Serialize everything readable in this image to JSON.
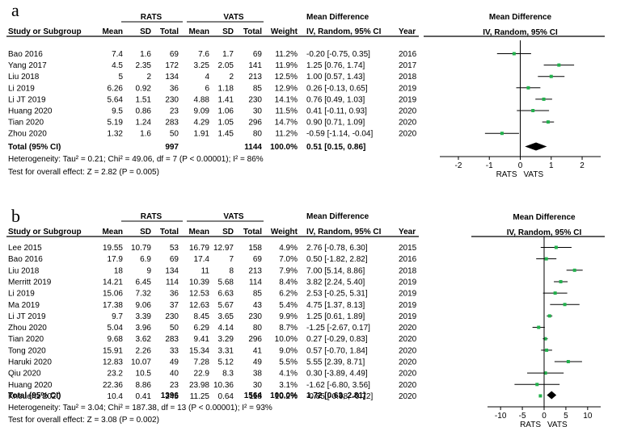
{
  "chart_data": [
    {
      "type": "forest",
      "panel_label": "a",
      "header": {
        "group1": "RATS",
        "group2": "VATS",
        "md": "Mean Difference",
        "md_sub": "IV, Random, 95% CI",
        "plot_title": "Mean Difference",
        "plot_sub": "IV, Random, 95% CI",
        "cols": {
          "study": "Study or Subgroup",
          "mean": "Mean",
          "sd": "SD",
          "total": "Total",
          "weight": "Weight",
          "year": "Year"
        }
      },
      "studies": [
        {
          "name": "Bao 2016",
          "m1": "7.4",
          "sd1": "1.6",
          "n1": "69",
          "m2": "7.6",
          "sd2": "1.7",
          "n2": "69",
          "weight": "11.2%",
          "ci": "-0.20 [-0.75, 0.35]",
          "year": "2016",
          "md": -0.2,
          "lo": -0.75,
          "hi": 0.35
        },
        {
          "name": "Yang 2017",
          "m1": "4.5",
          "sd1": "2.35",
          "n1": "172",
          "m2": "3.25",
          "sd2": "2.05",
          "n2": "141",
          "weight": "11.9%",
          "ci": "1.25 [0.76, 1.74]",
          "year": "2017",
          "md": 1.25,
          "lo": 0.76,
          "hi": 1.74
        },
        {
          "name": "Liu 2018",
          "m1": "5",
          "sd1": "2",
          "n1": "134",
          "m2": "4",
          "sd2": "2",
          "n2": "213",
          "weight": "12.5%",
          "ci": "1.00 [0.57, 1.43]",
          "year": "2018",
          "md": 1.0,
          "lo": 0.57,
          "hi": 1.43
        },
        {
          "name": "Li 2019",
          "m1": "6.26",
          "sd1": "0.92",
          "n1": "36",
          "m2": "6",
          "sd2": "1.18",
          "n2": "85",
          "weight": "12.9%",
          "ci": "0.26 [-0.13, 0.65]",
          "year": "2019",
          "md": 0.26,
          "lo": -0.13,
          "hi": 0.65
        },
        {
          "name": "Li JT 2019",
          "m1": "5.64",
          "sd1": "1.51",
          "n1": "230",
          "m2": "4.88",
          "sd2": "1.41",
          "n2": "230",
          "weight": "14.1%",
          "ci": "0.76 [0.49, 1.03]",
          "year": "2019",
          "md": 0.76,
          "lo": 0.49,
          "hi": 1.03
        },
        {
          "name": "Huang 2020",
          "m1": "9.5",
          "sd1": "0.86",
          "n1": "23",
          "m2": "9.09",
          "sd2": "1.06",
          "n2": "30",
          "weight": "11.5%",
          "ci": "0.41 [-0.11, 0.93]",
          "year": "2020",
          "md": 0.41,
          "lo": -0.11,
          "hi": 0.93
        },
        {
          "name": "Tian 2020",
          "m1": "5.19",
          "sd1": "1.24",
          "n1": "283",
          "m2": "4.29",
          "sd2": "1.05",
          "n2": "296",
          "weight": "14.7%",
          "ci": "0.90 [0.71, 1.09]",
          "year": "2020",
          "md": 0.9,
          "lo": 0.71,
          "hi": 1.09
        },
        {
          "name": "Zhou 2020",
          "m1": "1.32",
          "sd1": "1.6",
          "n1": "50",
          "m2": "1.91",
          "sd2": "1.45",
          "n2": "80",
          "weight": "11.2%",
          "ci": "-0.59 [-1.14, -0.04]",
          "year": "2020",
          "md": -0.59,
          "lo": -1.14,
          "hi": -0.04
        }
      ],
      "total": {
        "label": "Total (95% CI)",
        "n1": "997",
        "n2": "1144",
        "weight": "100.0%",
        "ci": "0.51 [0.15, 0.86]",
        "md": 0.51,
        "lo": 0.15,
        "hi": 0.86
      },
      "heterogeneity": "Heterogeneity: Tau² = 0.21; Chi² = 49.06, df = 7 (P < 0.00001); I² = 86%",
      "overall": "Test for overall effect: Z = 2.82 (P = 0.005)",
      "xlim": [
        -2.6,
        2.6
      ],
      "ticks": [
        -2,
        -1,
        0,
        1,
        2
      ],
      "xlabel_left": "RATS",
      "xlabel_right": "VATS"
    },
    {
      "type": "forest",
      "panel_label": "b",
      "header": {
        "group1": "RATS",
        "group2": "VATS",
        "md": "Mean Difference",
        "md_sub": "IV, Random, 95% CI",
        "plot_title": "Mean Difference",
        "plot_sub": "IV, Random, 95% CI",
        "cols": {
          "study": "Study or Subgroup",
          "mean": "Mean",
          "sd": "SD",
          "total": "Total",
          "weight": "Weight",
          "year": "Year"
        }
      },
      "studies": [
        {
          "name": "Lee 2015",
          "m1": "19.55",
          "sd1": "10.79",
          "n1": "53",
          "m2": "16.79",
          "sd2": "12.97",
          "n2": "158",
          "weight": "4.9%",
          "ci": "2.76 [-0.78, 6.30]",
          "year": "2015",
          "md": 2.76,
          "lo": -0.78,
          "hi": 6.3
        },
        {
          "name": "Bao 2016",
          "m1": "17.9",
          "sd1": "6.9",
          "n1": "69",
          "m2": "17.4",
          "sd2": "7",
          "n2": "69",
          "weight": "7.0%",
          "ci": "0.50 [-1.82, 2.82]",
          "year": "2016",
          "md": 0.5,
          "lo": -1.82,
          "hi": 2.82
        },
        {
          "name": "Liu 2018",
          "m1": "18",
          "sd1": "9",
          "n1": "134",
          "m2": "11",
          "sd2": "8",
          "n2": "213",
          "weight": "7.9%",
          "ci": "7.00 [5.14, 8.86]",
          "year": "2018",
          "md": 7.0,
          "lo": 5.14,
          "hi": 8.86
        },
        {
          "name": "Merritt 2019",
          "m1": "14.21",
          "sd1": "6.45",
          "n1": "114",
          "m2": "10.39",
          "sd2": "5.68",
          "n2": "114",
          "weight": "8.4%",
          "ci": "3.82 [2.24, 5.40]",
          "year": "2019",
          "md": 3.82,
          "lo": 2.24,
          "hi": 5.4
        },
        {
          "name": "Li 2019",
          "m1": "15.06",
          "sd1": "7.32",
          "n1": "36",
          "m2": "12.53",
          "sd2": "6.63",
          "n2": "85",
          "weight": "6.2%",
          "ci": "2.53 [-0.25, 5.31]",
          "year": "2019",
          "md": 2.53,
          "lo": -0.25,
          "hi": 5.31
        },
        {
          "name": "Ma 2019",
          "m1": "17.38",
          "sd1": "9.06",
          "n1": "37",
          "m2": "12.63",
          "sd2": "5.67",
          "n2": "43",
          "weight": "5.4%",
          "ci": "4.75 [1.37, 8.13]",
          "year": "2019",
          "md": 4.75,
          "lo": 1.37,
          "hi": 8.13
        },
        {
          "name": "Li JT 2019",
          "m1": "9.7",
          "sd1": "3.39",
          "n1": "230",
          "m2": "8.45",
          "sd2": "3.65",
          "n2": "230",
          "weight": "9.9%",
          "ci": "1.25 [0.61, 1.89]",
          "year": "2019",
          "md": 1.25,
          "lo": 0.61,
          "hi": 1.89
        },
        {
          "name": "Zhou 2020",
          "m1": "5.04",
          "sd1": "3.96",
          "n1": "50",
          "m2": "6.29",
          "sd2": "4.14",
          "n2": "80",
          "weight": "8.7%",
          "ci": "-1.25 [-2.67, 0.17]",
          "year": "2020",
          "md": -1.25,
          "lo": -2.67,
          "hi": 0.17
        },
        {
          "name": "Tian 2020",
          "m1": "9.68",
          "sd1": "3.62",
          "n1": "283",
          "m2": "9.41",
          "sd2": "3.29",
          "n2": "296",
          "weight": "10.0%",
          "ci": "0.27 [-0.29, 0.83]",
          "year": "2020",
          "md": 0.27,
          "lo": -0.29,
          "hi": 0.83
        },
        {
          "name": "Tong 2020",
          "m1": "15.91",
          "sd1": "2.26",
          "n1": "33",
          "m2": "15.34",
          "sd2": "3.31",
          "n2": "41",
          "weight": "9.0%",
          "ci": "0.57 [-0.70, 1.84]",
          "year": "2020",
          "md": 0.57,
          "lo": -0.7,
          "hi": 1.84
        },
        {
          "name": "Haruki 2020",
          "m1": "12.83",
          "sd1": "10.07",
          "n1": "49",
          "m2": "7.28",
          "sd2": "5.12",
          "n2": "49",
          "weight": "5.5%",
          "ci": "5.55 [2.39, 8.71]",
          "year": "2020",
          "md": 5.55,
          "lo": 2.39,
          "hi": 8.71
        },
        {
          "name": "Qiu 2020",
          "m1": "23.2",
          "sd1": "10.5",
          "n1": "40",
          "m2": "22.9",
          "sd2": "8.3",
          "n2": "38",
          "weight": "4.1%",
          "ci": "0.30 [-3.89, 4.49]",
          "year": "2020",
          "md": 0.3,
          "lo": -3.89,
          "hi": 4.49
        },
        {
          "name": "Huang 2020",
          "m1": "22.36",
          "sd1": "8.86",
          "n1": "23",
          "m2": "23.98",
          "sd2": "10.36",
          "n2": "30",
          "weight": "3.1%",
          "ci": "-1.62 [-6.80, 3.56]",
          "year": "2020",
          "md": -1.62,
          "lo": -6.8,
          "hi": 3.56
        },
        {
          "name": "Kneuertz 2020",
          "m1": "10.4",
          "sd1": "0.41",
          "n1": "245",
          "m2": "11.25",
          "sd2": "0.64",
          "n2": "118",
          "weight": "10.2%",
          "ci": "-0.85 [-0.98, -0.72]",
          "year": "2020",
          "md": -0.85,
          "lo": -0.98,
          "hi": -0.72
        }
      ],
      "total": {
        "label": "Total (95% CI)",
        "n1": "1396",
        "n2": "1564",
        "weight": "100.0%",
        "ci": "1.72 [0.63, 2.81]",
        "md": 1.72,
        "lo": 0.63,
        "hi": 2.81
      },
      "heterogeneity": "Heterogeneity: Tau² = 3.04; Chi² = 187.38, df = 13 (P < 0.00001); I² = 93%",
      "overall": "Test for overall effect: Z = 3.08 (P = 0.002)",
      "xlim": [
        -13,
        13
      ],
      "ticks": [
        -10,
        -5,
        0,
        5,
        10
      ],
      "xlabel_left": "RATS",
      "xlabel_right": "VATS"
    }
  ],
  "colors": {
    "marker": "#22b14c",
    "line": "#000000"
  }
}
